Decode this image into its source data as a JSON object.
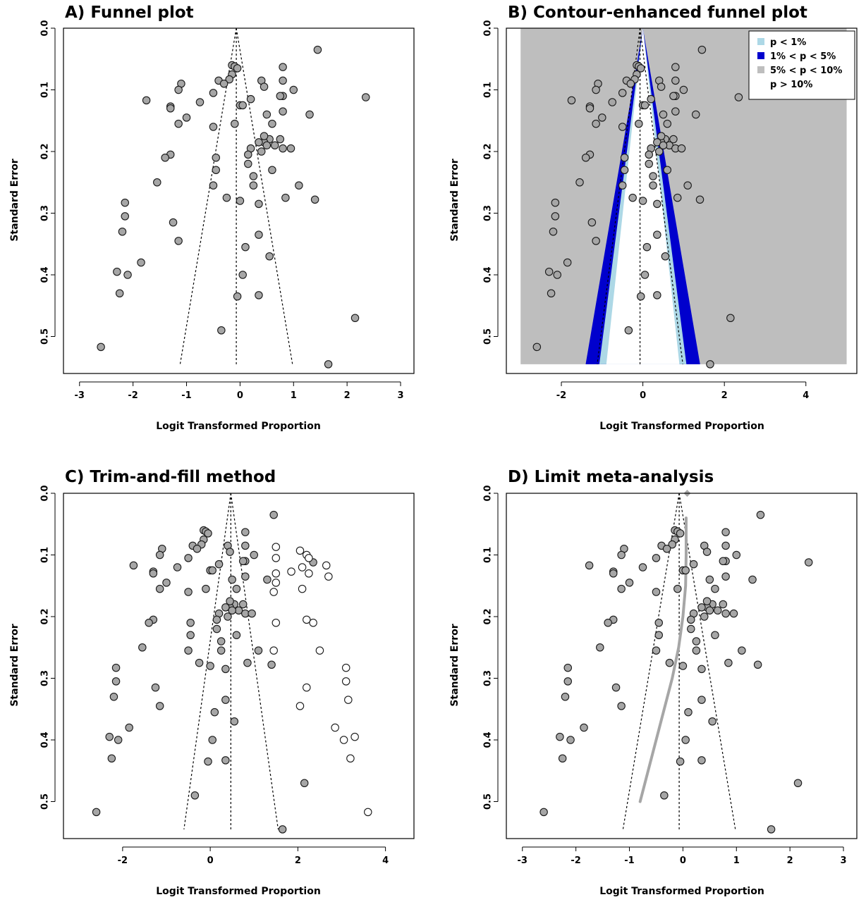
{
  "chart_data": [
    {
      "id": "A",
      "type": "scatter",
      "title": "A) Funnel plot",
      "xlabel": "Logit Transformed Proportion",
      "ylabel": "Standard Error",
      "xlim": [
        -3.3,
        3.25
      ],
      "ylim": [
        0.0,
        0.56
      ],
      "xticks": [
        -3,
        -2,
        -1,
        0,
        1,
        2,
        3
      ],
      "yticks": [
        0.0,
        0.1,
        0.2,
        0.3,
        0.4,
        0.5
      ],
      "center": -0.07,
      "funnel_top": 0.0,
      "funnel_bottom": 0.545,
      "funnel_left": -1.12,
      "funnel_right": 0.98,
      "points": {
        "x": [
          1.45,
          -0.15,
          -0.1,
          -0.05,
          0.8,
          -0.15,
          -1.1,
          -0.4,
          -0.2,
          0.4,
          0.8,
          -1.15,
          -0.5,
          0.45,
          1.0,
          -0.3,
          0.8,
          0.75,
          2.35,
          -1.75,
          0.2,
          0.0,
          0.05,
          -0.75,
          -1.3,
          -1.3,
          0.5,
          1.3,
          -1.0,
          0.8,
          -0.5,
          -0.1,
          -1.15,
          0.6,
          0.55,
          0.45,
          0.75,
          0.35,
          0.65,
          0.5,
          0.8,
          0.95,
          0.4,
          0.2,
          0.45,
          0.15,
          -0.45,
          -1.3,
          -1.4,
          0.15,
          -0.45,
          0.6,
          0.25,
          -1.55,
          -0.5,
          0.25,
          1.1,
          0.85,
          -0.25,
          1.4,
          -2.15,
          0.0,
          0.35,
          -2.15,
          -1.25,
          -2.2,
          0.35,
          -1.15,
          0.1,
          -1.85,
          -2.3,
          -2.1,
          0.05,
          0.55,
          -2.25,
          -0.05,
          0.35,
          2.15,
          -0.35,
          -2.6,
          1.65
        ],
        "y": [
          0.035,
          0.06,
          0.062,
          0.065,
          0.063,
          0.075,
          0.09,
          0.085,
          0.083,
          0.085,
          0.085,
          0.1,
          0.105,
          0.095,
          0.1,
          0.09,
          0.11,
          0.11,
          0.112,
          0.117,
          0.115,
          0.125,
          0.125,
          0.12,
          0.127,
          0.13,
          0.14,
          0.14,
          0.145,
          0.135,
          0.16,
          0.155,
          0.155,
          0.155,
          0.18,
          0.185,
          0.18,
          0.185,
          0.19,
          0.19,
          0.195,
          0.195,
          0.2,
          0.195,
          0.175,
          0.205,
          0.21,
          0.205,
          0.21,
          0.22,
          0.23,
          0.23,
          0.24,
          0.25,
          0.255,
          0.255,
          0.255,
          0.275,
          0.275,
          0.278,
          0.283,
          0.28,
          0.285,
          0.305,
          0.315,
          0.33,
          0.335,
          0.345,
          0.355,
          0.38,
          0.395,
          0.4,
          0.4,
          0.37,
          0.43,
          0.435,
          0.433,
          0.47,
          0.49,
          0.517,
          0.545
        ]
      }
    },
    {
      "id": "B",
      "type": "scatter",
      "title": "B) Contour-enhanced funnel plot",
      "xlabel": "Logit Transformed Proportion",
      "ylabel": "Standard Error",
      "xlim": [
        -3.35,
        5.25
      ],
      "ylim": [
        0.0,
        0.56
      ],
      "xticks": [
        -2,
        0,
        2,
        4
      ],
      "yticks": [
        0.0,
        0.1,
        0.2,
        0.3,
        0.4,
        0.5
      ],
      "center": -0.07,
      "funnel_top": 0.0,
      "funnel_bottom": 0.545,
      "funnel_left": -1.12,
      "funnel_right": 0.98,
      "contour_center": 0.0,
      "contour_xrange": [
        -3.0,
        5.0
      ],
      "contour_z": [
        1.645,
        1.96,
        2.576
      ],
      "legend": {
        "position": "top-right",
        "entries": [
          {
            "label": "p < 1%",
            "color": "#add8e6"
          },
          {
            "label": "1% < p < 5%",
            "color": "#0000cd"
          },
          {
            "label": "5% < p < 10%",
            "color": "#bebebe"
          },
          {
            "label": "p > 10%",
            "color": "#ffffff"
          }
        ]
      },
      "region_colors": {
        "p_gt_10": "#ffffff",
        "p_5_10": "#bebebe",
        "p_1_5": "#0000cd",
        "p_lt_1": "#add8e6"
      },
      "points": {
        "x": [
          1.45,
          -0.15,
          -0.1,
          -0.05,
          0.8,
          -0.15,
          -1.1,
          -0.4,
          -0.2,
          0.4,
          0.8,
          -1.15,
          -0.5,
          0.45,
          1.0,
          -0.3,
          0.8,
          0.75,
          2.35,
          -1.75,
          0.2,
          0.0,
          0.05,
          -0.75,
          -1.3,
          -1.3,
          0.5,
          1.3,
          -1.0,
          0.8,
          -0.5,
          -0.1,
          -1.15,
          0.6,
          0.55,
          0.45,
          0.75,
          0.35,
          0.65,
          0.5,
          0.8,
          0.95,
          0.4,
          0.2,
          0.45,
          0.15,
          -0.45,
          -1.3,
          -1.4,
          0.15,
          -0.45,
          0.6,
          0.25,
          -1.55,
          -0.5,
          0.25,
          1.1,
          0.85,
          -0.25,
          1.4,
          -2.15,
          0.0,
          0.35,
          -2.15,
          -1.25,
          -2.2,
          0.35,
          -1.15,
          0.1,
          -1.85,
          -2.3,
          -2.1,
          0.05,
          0.55,
          -2.25,
          -0.05,
          0.35,
          2.15,
          -0.35,
          -2.6,
          1.65
        ],
        "y": [
          0.035,
          0.06,
          0.062,
          0.065,
          0.063,
          0.075,
          0.09,
          0.085,
          0.083,
          0.085,
          0.085,
          0.1,
          0.105,
          0.095,
          0.1,
          0.09,
          0.11,
          0.11,
          0.112,
          0.117,
          0.115,
          0.125,
          0.125,
          0.12,
          0.127,
          0.13,
          0.14,
          0.14,
          0.145,
          0.135,
          0.16,
          0.155,
          0.155,
          0.155,
          0.18,
          0.185,
          0.18,
          0.185,
          0.19,
          0.19,
          0.195,
          0.195,
          0.2,
          0.195,
          0.175,
          0.205,
          0.21,
          0.205,
          0.21,
          0.22,
          0.23,
          0.23,
          0.24,
          0.25,
          0.255,
          0.255,
          0.255,
          0.275,
          0.275,
          0.278,
          0.283,
          0.28,
          0.285,
          0.305,
          0.315,
          0.33,
          0.335,
          0.345,
          0.355,
          0.38,
          0.395,
          0.4,
          0.4,
          0.37,
          0.43,
          0.435,
          0.433,
          0.47,
          0.49,
          0.517,
          0.545
        ]
      }
    },
    {
      "id": "C",
      "type": "scatter",
      "title": "C) Trim-and-fill method",
      "xlabel": "Logit Transformed Proportion",
      "ylabel": "Standard Error",
      "xlim": [
        -3.35,
        4.65
      ],
      "ylim": [
        0.0,
        0.56
      ],
      "xticks": [
        -2,
        0,
        2,
        4
      ],
      "yticks": [
        0.0,
        0.1,
        0.2,
        0.3,
        0.4,
        0.5
      ],
      "center": 0.47,
      "funnel_top": 0.0,
      "funnel_bottom": 0.545,
      "funnel_left": -0.6,
      "funnel_right": 1.55,
      "points": {
        "x": [
          1.45,
          -0.15,
          -0.1,
          -0.05,
          0.8,
          -0.15,
          -1.1,
          -0.4,
          -0.2,
          0.4,
          0.8,
          -1.15,
          -0.5,
          0.45,
          1.0,
          -0.3,
          0.8,
          0.75,
          2.35,
          -1.75,
          0.2,
          0.0,
          0.05,
          -0.75,
          -1.3,
          -1.3,
          0.5,
          1.3,
          -1.0,
          0.8,
          -0.5,
          -0.1,
          -1.15,
          0.6,
          0.55,
          0.45,
          0.75,
          0.35,
          0.65,
          0.5,
          0.8,
          0.95,
          0.4,
          0.2,
          0.45,
          0.15,
          -0.45,
          -1.3,
          -1.4,
          0.15,
          -0.45,
          0.6,
          0.25,
          -1.55,
          -0.5,
          0.25,
          1.1,
          0.85,
          -0.25,
          1.4,
          -2.15,
          0.0,
          0.35,
          -2.15,
          -1.25,
          -2.2,
          0.35,
          -1.15,
          0.1,
          -1.85,
          -2.3,
          -2.1,
          0.05,
          0.55,
          -2.25,
          -0.05,
          0.35,
          2.15,
          -0.35,
          -2.6,
          1.65
        ],
        "y": [
          0.035,
          0.06,
          0.062,
          0.065,
          0.063,
          0.075,
          0.09,
          0.085,
          0.083,
          0.085,
          0.085,
          0.1,
          0.105,
          0.095,
          0.1,
          0.09,
          0.11,
          0.11,
          0.112,
          0.117,
          0.115,
          0.125,
          0.125,
          0.12,
          0.127,
          0.13,
          0.14,
          0.14,
          0.145,
          0.135,
          0.16,
          0.155,
          0.155,
          0.155,
          0.18,
          0.185,
          0.18,
          0.185,
          0.19,
          0.19,
          0.195,
          0.195,
          0.2,
          0.195,
          0.175,
          0.205,
          0.21,
          0.205,
          0.21,
          0.22,
          0.23,
          0.23,
          0.24,
          0.25,
          0.255,
          0.255,
          0.255,
          0.275,
          0.275,
          0.278,
          0.283,
          0.28,
          0.285,
          0.305,
          0.315,
          0.33,
          0.335,
          0.345,
          0.355,
          0.38,
          0.395,
          0.4,
          0.4,
          0.37,
          0.43,
          0.435,
          0.433,
          0.47,
          0.49,
          0.517,
          0.545
        ]
      },
      "filled_points": {
        "x": [
          1.5,
          2.05,
          2.2,
          2.25,
          1.5,
          2.65,
          2.1,
          1.85,
          1.5,
          2.25,
          2.7,
          2.1,
          1.45,
          1.5,
          2.2,
          2.35,
          1.5,
          2.5,
          1.45,
          3.1,
          2.2,
          3.1,
          3.15,
          2.05,
          2.85,
          3.05,
          3.3,
          3.2,
          3.6
        ],
        "y": [
          0.087,
          0.093,
          0.1,
          0.105,
          0.105,
          0.117,
          0.12,
          0.127,
          0.13,
          0.13,
          0.135,
          0.155,
          0.16,
          0.145,
          0.205,
          0.21,
          0.21,
          0.255,
          0.255,
          0.283,
          0.315,
          0.305,
          0.335,
          0.345,
          0.38,
          0.4,
          0.395,
          0.43,
          0.517
        ]
      }
    },
    {
      "id": "D",
      "type": "scatter",
      "title": "D) Limit meta-analysis",
      "xlabel": "Logit Transformed Proportion",
      "ylabel": "Standard Error",
      "xlim": [
        -3.3,
        3.25
      ],
      "ylim": [
        0.0,
        0.56
      ],
      "xticks": [
        -3,
        -2,
        -1,
        0,
        1,
        2,
        3
      ],
      "yticks": [
        0.0,
        0.1,
        0.2,
        0.3,
        0.4,
        0.5
      ],
      "center": -0.07,
      "funnel_top": 0.0,
      "funnel_bottom": 0.545,
      "funnel_left": -1.12,
      "funnel_right": 0.98,
      "limit_estimate": {
        "x": 0.08,
        "y": 0.0
      },
      "limit_curve": {
        "x": [
          0.06,
          0.06,
          0.05,
          0.0,
          -0.08,
          -0.2,
          -0.35,
          -0.5,
          -0.65,
          -0.8
        ],
        "y": [
          0.04,
          0.1,
          0.15,
          0.2,
          0.25,
          0.3,
          0.35,
          0.4,
          0.45,
          0.5
        ]
      },
      "points": {
        "x": [
          1.45,
          -0.15,
          -0.1,
          -0.05,
          0.8,
          -0.15,
          -1.1,
          -0.4,
          -0.2,
          0.4,
          0.8,
          -1.15,
          -0.5,
          0.45,
          1.0,
          -0.3,
          0.8,
          0.75,
          2.35,
          -1.75,
          0.2,
          0.0,
          0.05,
          -0.75,
          -1.3,
          -1.3,
          0.5,
          1.3,
          -1.0,
          0.8,
          -0.5,
          -0.1,
          -1.15,
          0.6,
          0.55,
          0.45,
          0.75,
          0.35,
          0.65,
          0.5,
          0.8,
          0.95,
          0.4,
          0.2,
          0.45,
          0.15,
          -0.45,
          -1.3,
          -1.4,
          0.15,
          -0.45,
          0.6,
          0.25,
          -1.55,
          -0.5,
          0.25,
          1.1,
          0.85,
          -0.25,
          1.4,
          -2.15,
          0.0,
          0.35,
          -2.15,
          -1.25,
          -2.2,
          0.35,
          -1.15,
          0.1,
          -1.85,
          -2.3,
          -2.1,
          0.05,
          0.55,
          -2.25,
          -0.05,
          0.35,
          2.15,
          -0.35,
          -2.6,
          1.65
        ],
        "y": [
          0.035,
          0.06,
          0.062,
          0.065,
          0.063,
          0.075,
          0.09,
          0.085,
          0.083,
          0.085,
          0.085,
          0.1,
          0.105,
          0.095,
          0.1,
          0.09,
          0.11,
          0.11,
          0.112,
          0.117,
          0.115,
          0.125,
          0.125,
          0.12,
          0.127,
          0.13,
          0.14,
          0.14,
          0.145,
          0.135,
          0.16,
          0.155,
          0.155,
          0.155,
          0.18,
          0.185,
          0.18,
          0.185,
          0.19,
          0.19,
          0.195,
          0.195,
          0.2,
          0.195,
          0.175,
          0.205,
          0.21,
          0.205,
          0.21,
          0.22,
          0.23,
          0.23,
          0.24,
          0.25,
          0.255,
          0.255,
          0.255,
          0.275,
          0.275,
          0.278,
          0.283,
          0.28,
          0.285,
          0.305,
          0.315,
          0.33,
          0.335,
          0.345,
          0.355,
          0.38,
          0.395,
          0.4,
          0.4,
          0.37,
          0.43,
          0.435,
          0.433,
          0.47,
          0.49,
          0.517,
          0.545
        ]
      }
    }
  ],
  "colors": {
    "point_fill": "#a6a6a6",
    "point_stroke": "#1a1a1a",
    "filled_point_fill": "#ffffff",
    "limit_line": "#a6a6a6"
  }
}
